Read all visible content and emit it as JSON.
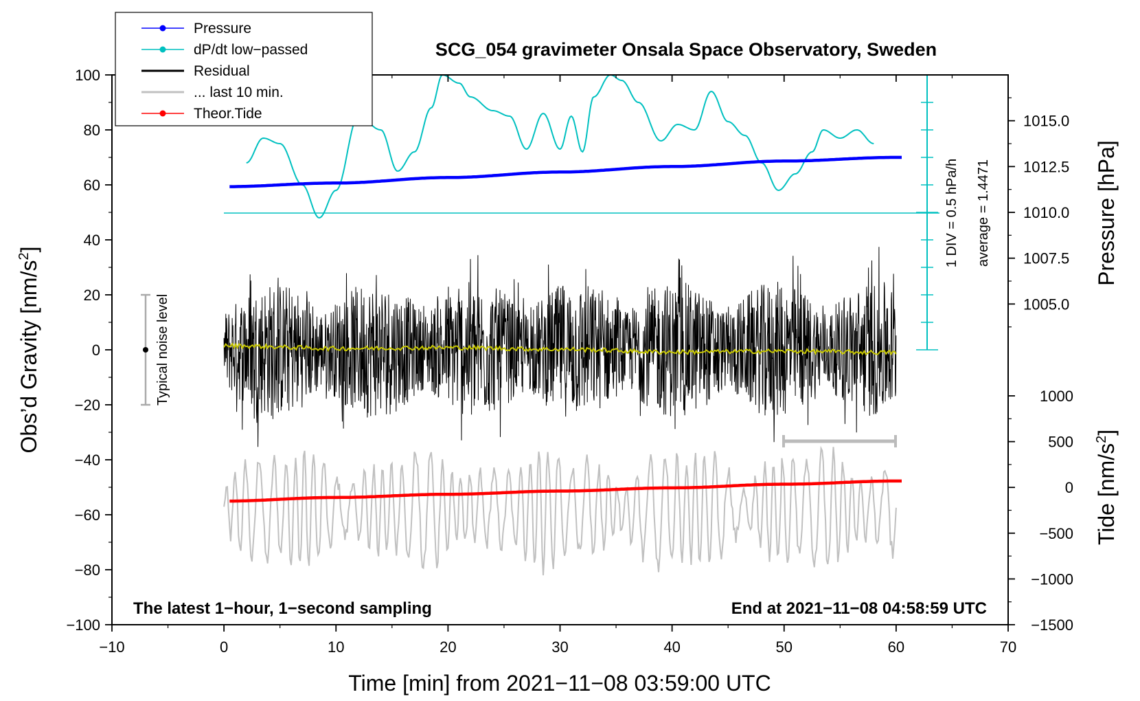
{
  "chart_data": {
    "type": "line",
    "title": "SCG_054 gravimeter Onsala Space Observatory, Sweden",
    "xlabel": "Time [min] from 2021−11−08 03:59:00 UTC",
    "ylabel_left": "Obs’d Gravity [nm/s",
    "ylabel_left_sup": "2",
    "ylabel_left_close": "]",
    "ylabel_right_top": "Pressure [hPa]",
    "ylabel_right_bottom": "Tide [nm/s",
    "ylabel_right_bottom_sup": "2",
    "ylabel_right_bottom_close": "]",
    "xlim": [
      -10,
      70
    ],
    "ylim_left": [
      -100,
      100
    ],
    "x_ticks": [
      "−10",
      "0",
      "10",
      "20",
      "30",
      "40",
      "50",
      "60",
      "70"
    ],
    "x_tick_values": [
      -10,
      0,
      10,
      20,
      30,
      40,
      50,
      60,
      70
    ],
    "y_left_ticks": [
      "100",
      "80",
      "60",
      "40",
      "20",
      "0",
      "−20",
      "−40",
      "−60",
      "−80",
      "−100"
    ],
    "y_left_tick_values": [
      100,
      80,
      60,
      40,
      20,
      0,
      -20,
      -40,
      -60,
      -80,
      -100
    ],
    "pressure_axis": {
      "range_hpa": [
        1002.5,
        1017.5
      ],
      "ticks": [
        "1015.0",
        "1012.5",
        "1010.0",
        "1007.5",
        "1005.0"
      ],
      "tick_values": [
        1015.0,
        1012.5,
        1010.0,
        1007.5,
        1005.0
      ]
    },
    "tide_axis": {
      "range": [
        -1500,
        1000
      ],
      "ticks": [
        "1000",
        "500",
        "0",
        "−500",
        "−1000",
        "−1500"
      ],
      "tick_values": [
        1000,
        500,
        0,
        -500,
        -1000,
        -1500
      ]
    },
    "series": [
      {
        "name": "Pressure",
        "color": "#0000ff",
        "axis": "pressure",
        "x": [
          0,
          10,
          20,
          30,
          40,
          50,
          60
        ],
        "values": [
          1011.4,
          1011.6,
          1011.9,
          1012.2,
          1012.5,
          1012.8,
          1013.0
        ]
      },
      {
        "name": "dP/dt low−passed",
        "color": "#00c0c0",
        "axis": "left",
        "x": [
          2,
          3.5,
          5,
          7,
          8.5,
          10,
          12,
          14,
          15.5,
          17,
          18.5,
          19.5,
          21,
          22,
          24,
          25.5,
          27,
          28.5,
          30,
          31,
          32,
          33,
          34.5,
          35.5,
          37,
          39,
          40.5,
          42,
          43.5,
          45,
          46.5,
          48,
          49.5,
          51,
          52.5,
          53.5,
          55,
          56.5,
          58
        ],
        "values": [
          68,
          77,
          75,
          60,
          48,
          58,
          85,
          80,
          65,
          72,
          88,
          100,
          97,
          92,
          87,
          85,
          73,
          86,
          73,
          85,
          72,
          92,
          100,
          98,
          90,
          76,
          82,
          80,
          94,
          83,
          78,
          68,
          58,
          64,
          72,
          80,
          77,
          80,
          75
        ]
      },
      {
        "name": "Residual",
        "color": "#000000",
        "axis": "left",
        "x": [
          0,
          60
        ],
        "values": [
          0,
          0
        ],
        "approx_amplitude": 25
      },
      {
        "name": "... last 10 min.",
        "color": "#c0c0c0",
        "axis": "left",
        "x": [
          0,
          60
        ],
        "values": [
          -55,
          -55
        ],
        "approx_amplitude": 12
      },
      {
        "name": "Theor.Tide",
        "color": "#ff0000",
        "axis": "tide",
        "x": [
          0,
          10,
          20,
          30,
          40,
          50,
          60
        ],
        "values": [
          -150,
          -110,
          -75,
          -40,
          -5,
          35,
          70
        ]
      }
    ],
    "residual_smooth": {
      "color": "#c8c800",
      "x": [
        0,
        10,
        20,
        30,
        40,
        50,
        60
      ],
      "values": [
        1.5,
        0.5,
        0.8,
        0.2,
        -0.8,
        -0.5,
        -1
      ]
    },
    "legend": [
      {
        "label": "Pressure",
        "color": "#0000ff",
        "marker": true
      },
      {
        "label": "dP/dt low−passed",
        "color": "#00c0c0",
        "marker": true
      },
      {
        "label": "Residual",
        "color": "#000000",
        "marker": false
      },
      {
        "label": "... last 10 min.",
        "color": "#c0c0c0",
        "marker": false
      },
      {
        "label": "Theor.Tide",
        "color": "#ff0000",
        "marker": true
      }
    ],
    "legend_position": "top-left",
    "dpdt_scale_label": "1 DIV = 0.5 hPa/h",
    "dpdt_average_label": "average = 1.4471",
    "noise_label": "Typical noise level",
    "bottom_left_note": "The latest 1−hour, 1−second sampling",
    "bottom_right_note": "End at 2021−11−08 04:58:59 UTC"
  }
}
